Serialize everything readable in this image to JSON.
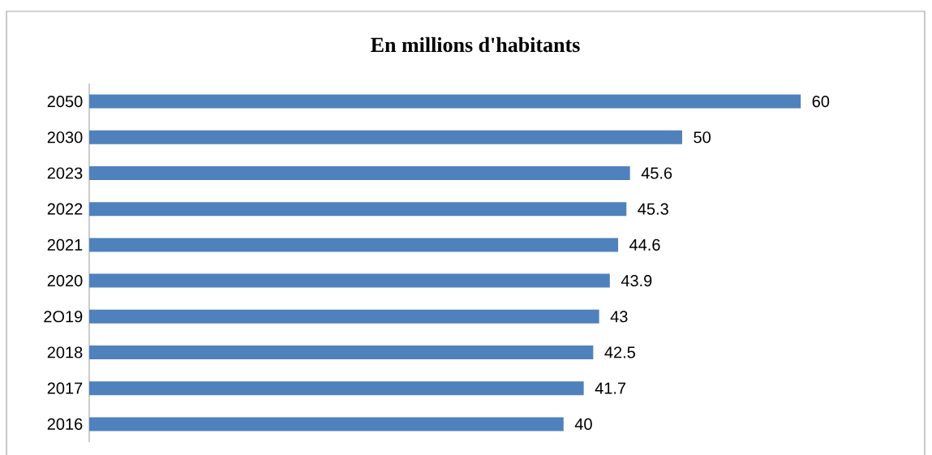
{
  "chart_data": {
    "type": "bar",
    "orientation": "horizontal",
    "title": "En millions d'habitants",
    "categories": [
      "2050",
      "2030",
      "2023",
      "2022",
      "2021",
      "2020",
      "2O19",
      "2018",
      "2017",
      "2016"
    ],
    "values": [
      60,
      50,
      45.6,
      45.3,
      44.6,
      43.9,
      43,
      42.5,
      41.7,
      40
    ],
    "color": "#4f81bd",
    "data_labels": true
  }
}
